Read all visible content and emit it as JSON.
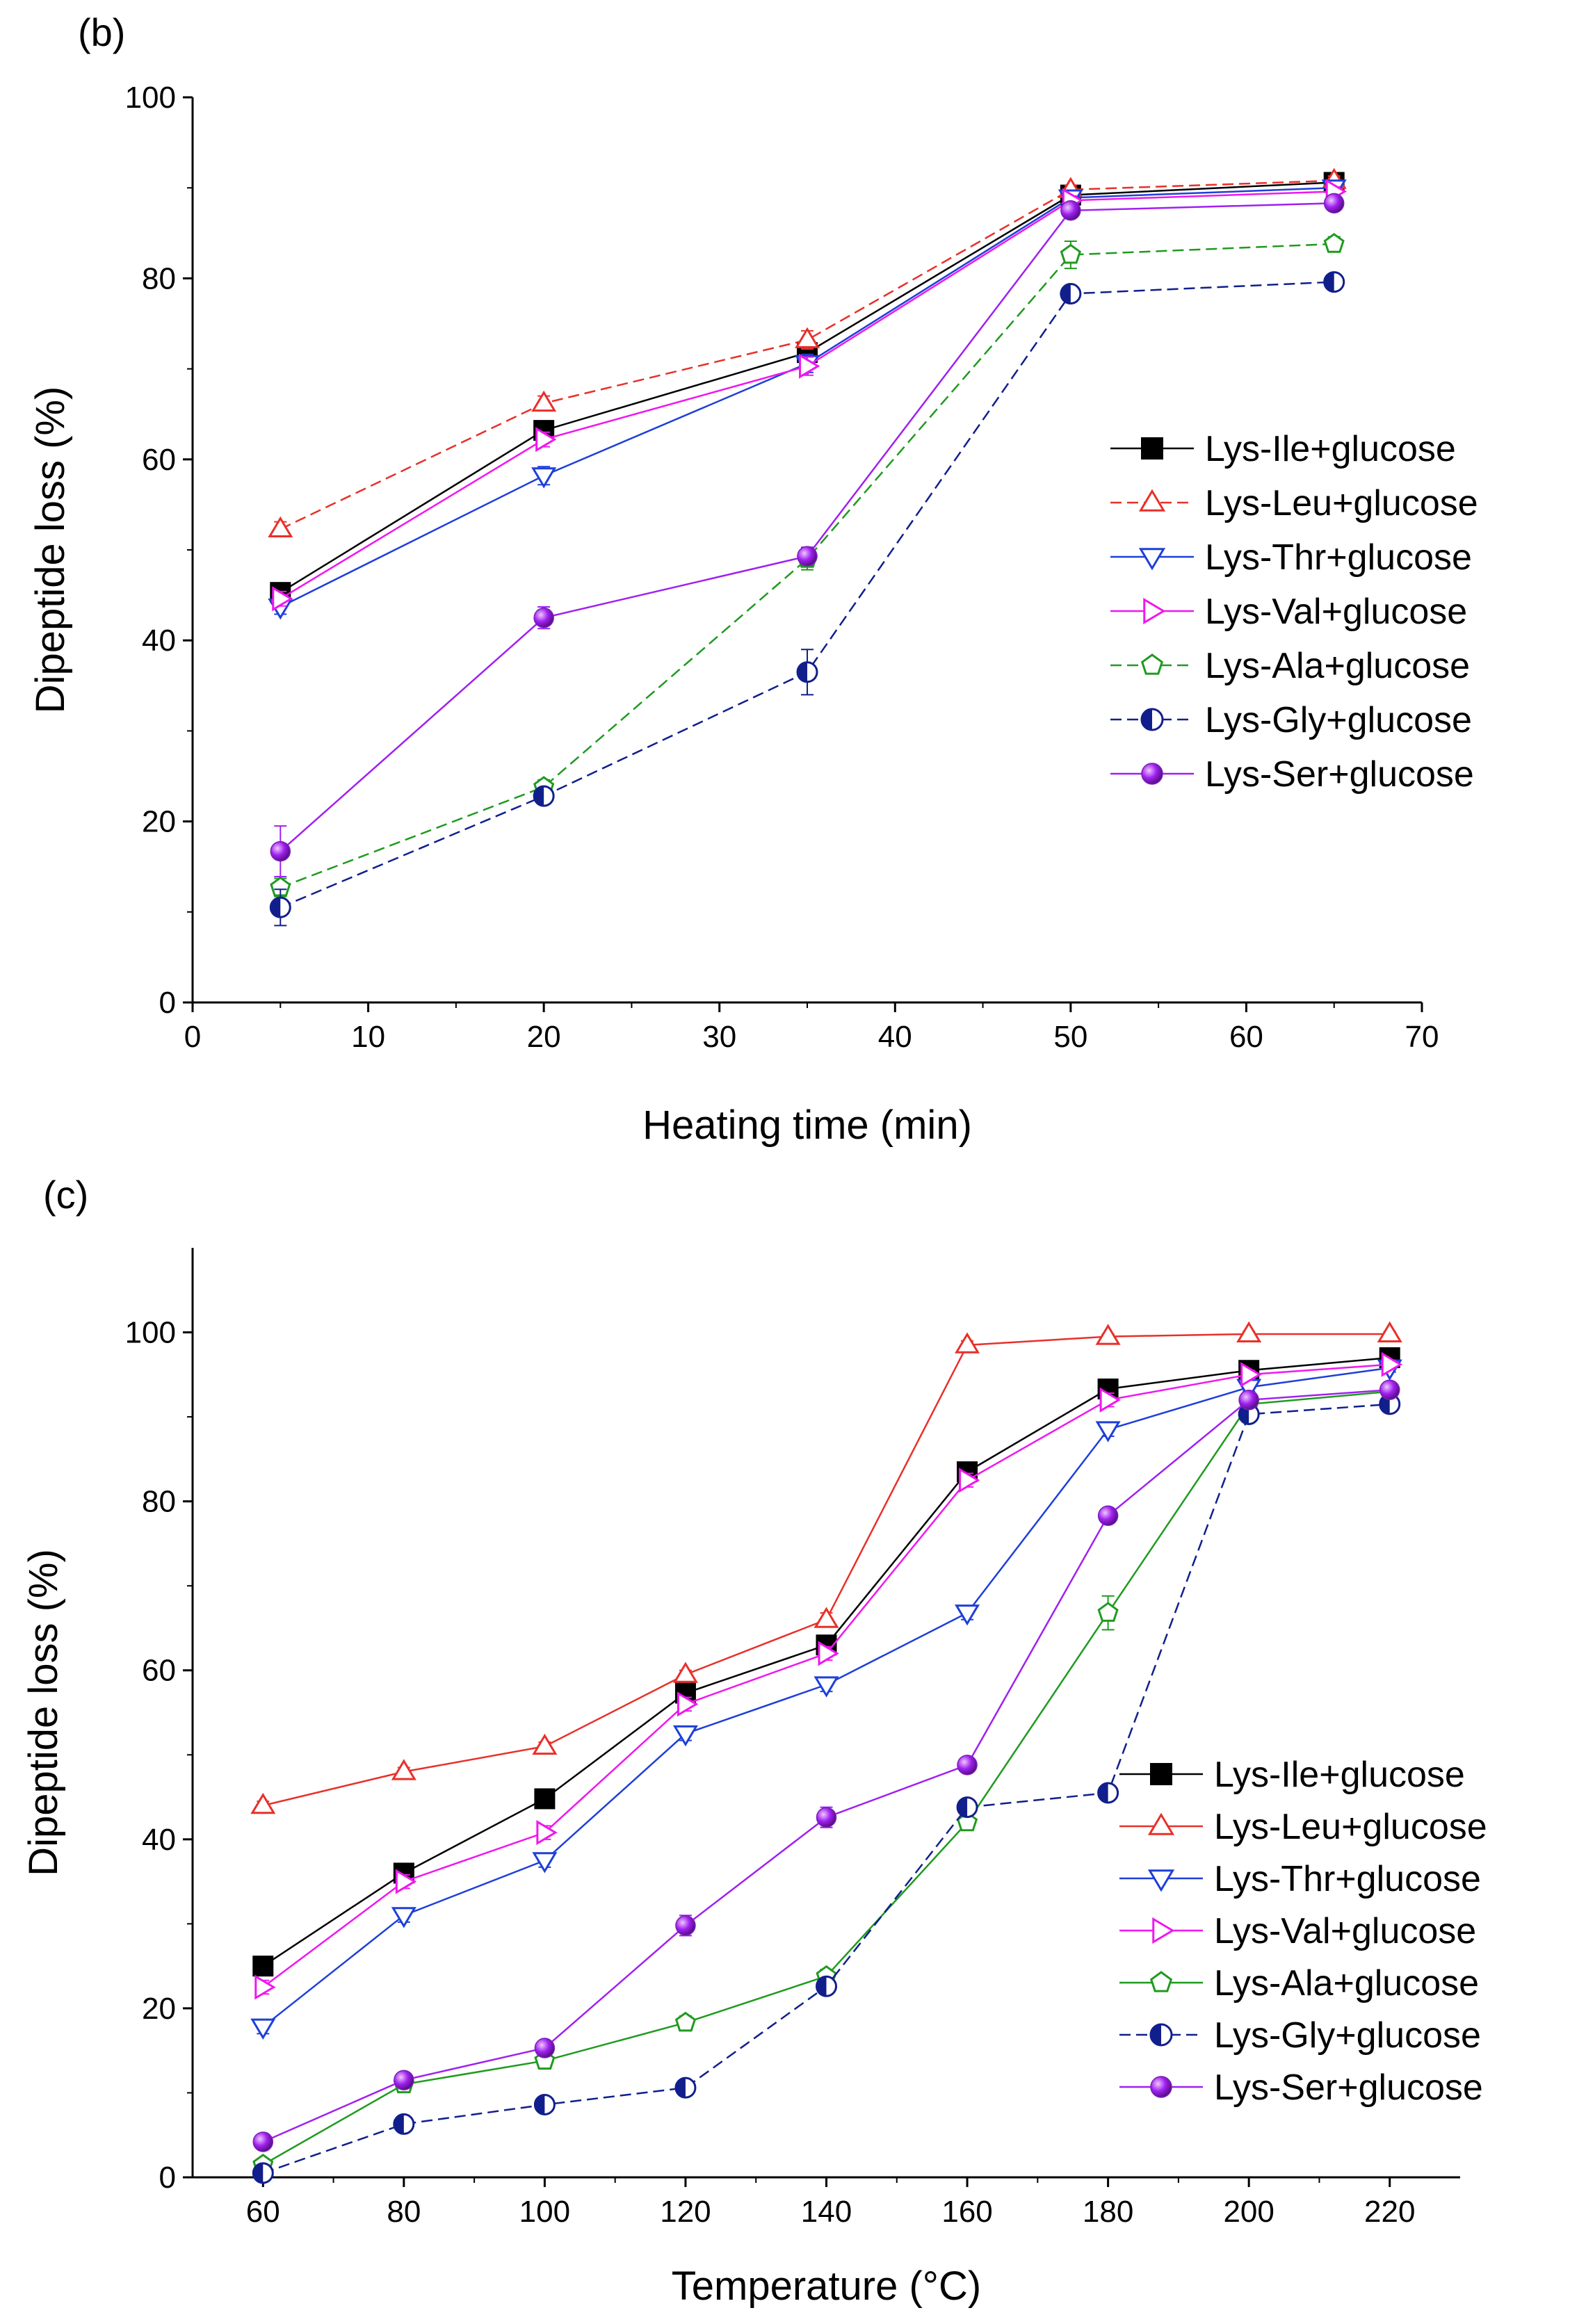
{
  "chart_data": [
    {
      "panel": "(b)",
      "type": "line",
      "xlabel": "Heating time (min)",
      "ylabel": "Dipeptide loss (%)",
      "xlim": [
        0,
        70
      ],
      "ylim": [
        0,
        100
      ],
      "xticks": [
        0,
        10,
        20,
        30,
        40,
        50,
        60,
        70
      ],
      "yticks": [
        0,
        20,
        40,
        60,
        80,
        100
      ],
      "x": [
        5,
        20,
        35,
        50,
        65
      ],
      "grid": false,
      "legend_position": "right-middle",
      "series": [
        {
          "name": "Lys-Ile+glucose",
          "color": "#000000",
          "marker": "square-filled",
          "dash": false,
          "values": [
            45.3,
            63.2,
            71.8,
            89.2,
            90.6
          ],
          "errors": [
            0.8,
            0.8,
            1.0,
            0.5,
            0.5
          ]
        },
        {
          "name": "Lys-Leu+glucose",
          "color": "#e8302a",
          "marker": "triangle-up-open",
          "dash": true,
          "values": [
            52.3,
            66.2,
            73.2,
            89.8,
            90.8
          ],
          "errors": [
            0.8,
            0.8,
            1.0,
            0.5,
            0.5
          ]
        },
        {
          "name": "Lys-Thr+glucose",
          "color": "#1e3fd8",
          "marker": "triangle-down-open",
          "dash": false,
          "values": [
            43.7,
            58.2,
            70.6,
            88.9,
            90.0
          ],
          "errors": [
            0.8,
            1.0,
            1.0,
            0.5,
            0.5
          ]
        },
        {
          "name": "Lys-Val+glucose",
          "color": "#ee18ee",
          "marker": "triangle-right-open",
          "dash": false,
          "values": [
            44.6,
            62.2,
            70.3,
            88.6,
            89.6
          ],
          "errors": [
            0.8,
            0.8,
            1.0,
            0.5,
            0.5
          ]
        },
        {
          "name": "Lys-Ala+glucose",
          "color": "#1f9a1f",
          "marker": "pentagon-open",
          "dash": true,
          "values": [
            12.7,
            23.8,
            49.0,
            82.6,
            83.8
          ],
          "errors": [
            1.0,
            0.8,
            1.2,
            1.5,
            0.8
          ]
        },
        {
          "name": "Lys-Gly+glucose",
          "color": "#111f8c",
          "marker": "circle-half",
          "dash": true,
          "values": [
            10.5,
            22.8,
            36.5,
            78.3,
            79.6
          ],
          "errors": [
            2.0,
            0.8,
            2.5,
            0.8,
            0.5
          ]
        },
        {
          "name": "Lys-Ser+glucose",
          "color": "#a020f0",
          "marker": "sphere",
          "dash": false,
          "values": [
            16.7,
            42.5,
            49.3,
            87.5,
            88.3
          ],
          "errors": [
            2.8,
            1.2,
            1.0,
            0.5,
            0.5
          ]
        }
      ]
    },
    {
      "panel": "(c)",
      "type": "line",
      "xlabel": "Temperature (°C)",
      "ylabel": "Dipeptide loss (%)",
      "xlim": [
        50,
        230
      ],
      "ylim": [
        0,
        110
      ],
      "xticks": [
        60,
        80,
        100,
        120,
        140,
        160,
        180,
        200,
        220
      ],
      "yticks": [
        0,
        20,
        40,
        60,
        80,
        100
      ],
      "x": [
        60,
        80,
        100,
        120,
        140,
        160,
        180,
        200,
        220
      ],
      "grid": false,
      "legend_position": "bottom-right",
      "series": [
        {
          "name": "Lys-Ile+glucose",
          "color": "#000000",
          "marker": "square-filled",
          "dash": false,
          "values": [
            25.0,
            36.0,
            44.8,
            57.3,
            63.0,
            83.5,
            93.3,
            95.5,
            97.0
          ],
          "errors": [
            0.5,
            0.5,
            0.5,
            0.8,
            0.8,
            0.5,
            0.5,
            0.5,
            0.5
          ]
        },
        {
          "name": "Lys-Leu+glucose",
          "color": "#e8302a",
          "marker": "triangle-up-open",
          "dash": false,
          "values": [
            44.0,
            48.0,
            51.0,
            59.5,
            66.0,
            98.5,
            99.5,
            99.8,
            99.8
          ],
          "errors": [
            0.5,
            0.5,
            0.5,
            0.5,
            0.8,
            0.5,
            0.3,
            0.3,
            0.3
          ]
        },
        {
          "name": "Lys-Thr+glucose",
          "color": "#1e3fd8",
          "marker": "triangle-down-open",
          "dash": false,
          "values": [
            17.8,
            31.0,
            37.5,
            52.5,
            58.3,
            66.8,
            88.5,
            93.5,
            95.8
          ],
          "errors": [
            0.8,
            0.8,
            0.8,
            0.8,
            0.8,
            0.8,
            0.8,
            0.5,
            0.5
          ]
        },
        {
          "name": "Lys-Val+glucose",
          "color": "#ee18ee",
          "marker": "triangle-right-open",
          "dash": false,
          "values": [
            22.5,
            35.0,
            40.8,
            56.0,
            62.0,
            82.5,
            92.0,
            95.0,
            96.2
          ],
          "errors": [
            0.8,
            0.8,
            0.8,
            0.8,
            0.8,
            0.8,
            0.8,
            0.5,
            0.5
          ]
        },
        {
          "name": "Lys-Ala+glucose",
          "color": "#1f9a1f",
          "marker": "pentagon-open",
          "dash": false,
          "values": [
            1.5,
            11.0,
            13.8,
            18.3,
            23.8,
            42.0,
            66.8,
            91.5,
            93.0
          ],
          "errors": [
            0.5,
            0.8,
            0.8,
            0.8,
            0.8,
            0.8,
            2.0,
            0.8,
            0.5
          ]
        },
        {
          "name": "Lys-Gly+glucose",
          "color": "#111f8c",
          "marker": "circle-half",
          "dash": true,
          "values": [
            0.5,
            6.3,
            8.6,
            10.6,
            22.6,
            43.8,
            45.5,
            90.3,
            91.5
          ],
          "errors": [
            0.5,
            0.5,
            0.5,
            0.5,
            0.8,
            0.8,
            0.8,
            0.5,
            0.5
          ]
        },
        {
          "name": "Lys-Ser+glucose",
          "color": "#a020f0",
          "marker": "sphere",
          "dash": false,
          "values": [
            4.2,
            11.5,
            15.3,
            29.8,
            42.6,
            48.8,
            78.3,
            92.0,
            93.2
          ],
          "errors": [
            0.5,
            0.5,
            0.5,
            1.2,
            1.2,
            0.5,
            0.5,
            0.5,
            0.5
          ]
        }
      ]
    }
  ]
}
